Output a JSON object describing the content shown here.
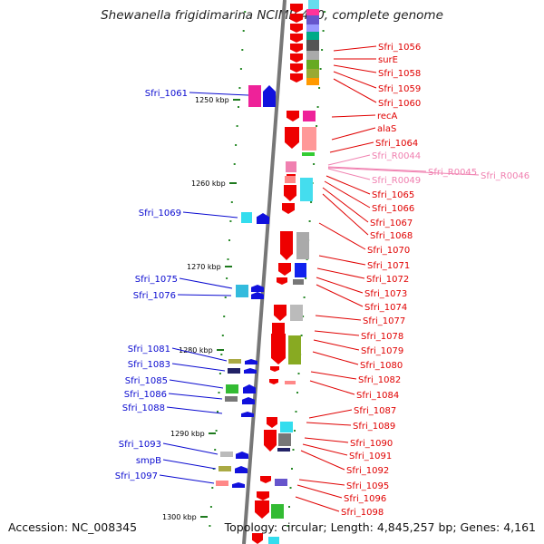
{
  "title": "Shewanella frigidimarina NCIMB 400, complete genome",
  "footer": {
    "accession": "Accession: NC_008345",
    "summary": "Topology: circular; Length: 4,845,257 bp; Genes: 4,161"
  },
  "scale": [
    "1250 kbp",
    "1260 kbp",
    "1270 kbp",
    "1280 kbp",
    "1290 kbp",
    "1300 kbp"
  ],
  "colors": {
    "plus_strand_label": "#0a0ad0",
    "minus_strand_label": "#e00000",
    "rna_label": "#f080b0",
    "backbone": "#777777"
  },
  "labels_left": [
    "Sfri_1061",
    "Sfri_1069",
    "Sfri_1075",
    "Sfri_1076",
    "Sfri_1081",
    "Sfri_1083",
    "Sfri_1085",
    "Sfri_1086",
    "Sfri_1088",
    "Sfri_1093",
    "smpB",
    "Sfri_1097"
  ],
  "labels_right": [
    "Sfri_1056",
    "surE",
    "Sfri_1058",
    "Sfri_1059",
    "Sfri_1060",
    "recA",
    "alaS",
    "Sfri_1064",
    "Sfri_1065",
    "Sfri_1066",
    "Sfri_1067",
    "Sfri_1068",
    "Sfri_1070",
    "Sfri_1071",
    "Sfri_1072",
    "Sfri_1073",
    "Sfri_1074",
    "Sfri_1077",
    "Sfri_1078",
    "Sfri_1079",
    "Sfri_1080",
    "Sfri_1082",
    "Sfri_1084",
    "Sfri_1087",
    "Sfri_1089",
    "Sfri_1090",
    "Sfri_1091",
    "Sfri_1092",
    "Sfri_1095",
    "Sfri_1096",
    "Sfri_1098"
  ],
  "labels_rna": [
    "Sfri_R0044",
    "Sfri_R0049",
    "Sfri_R0045",
    "Sfri_R0046"
  ]
}
